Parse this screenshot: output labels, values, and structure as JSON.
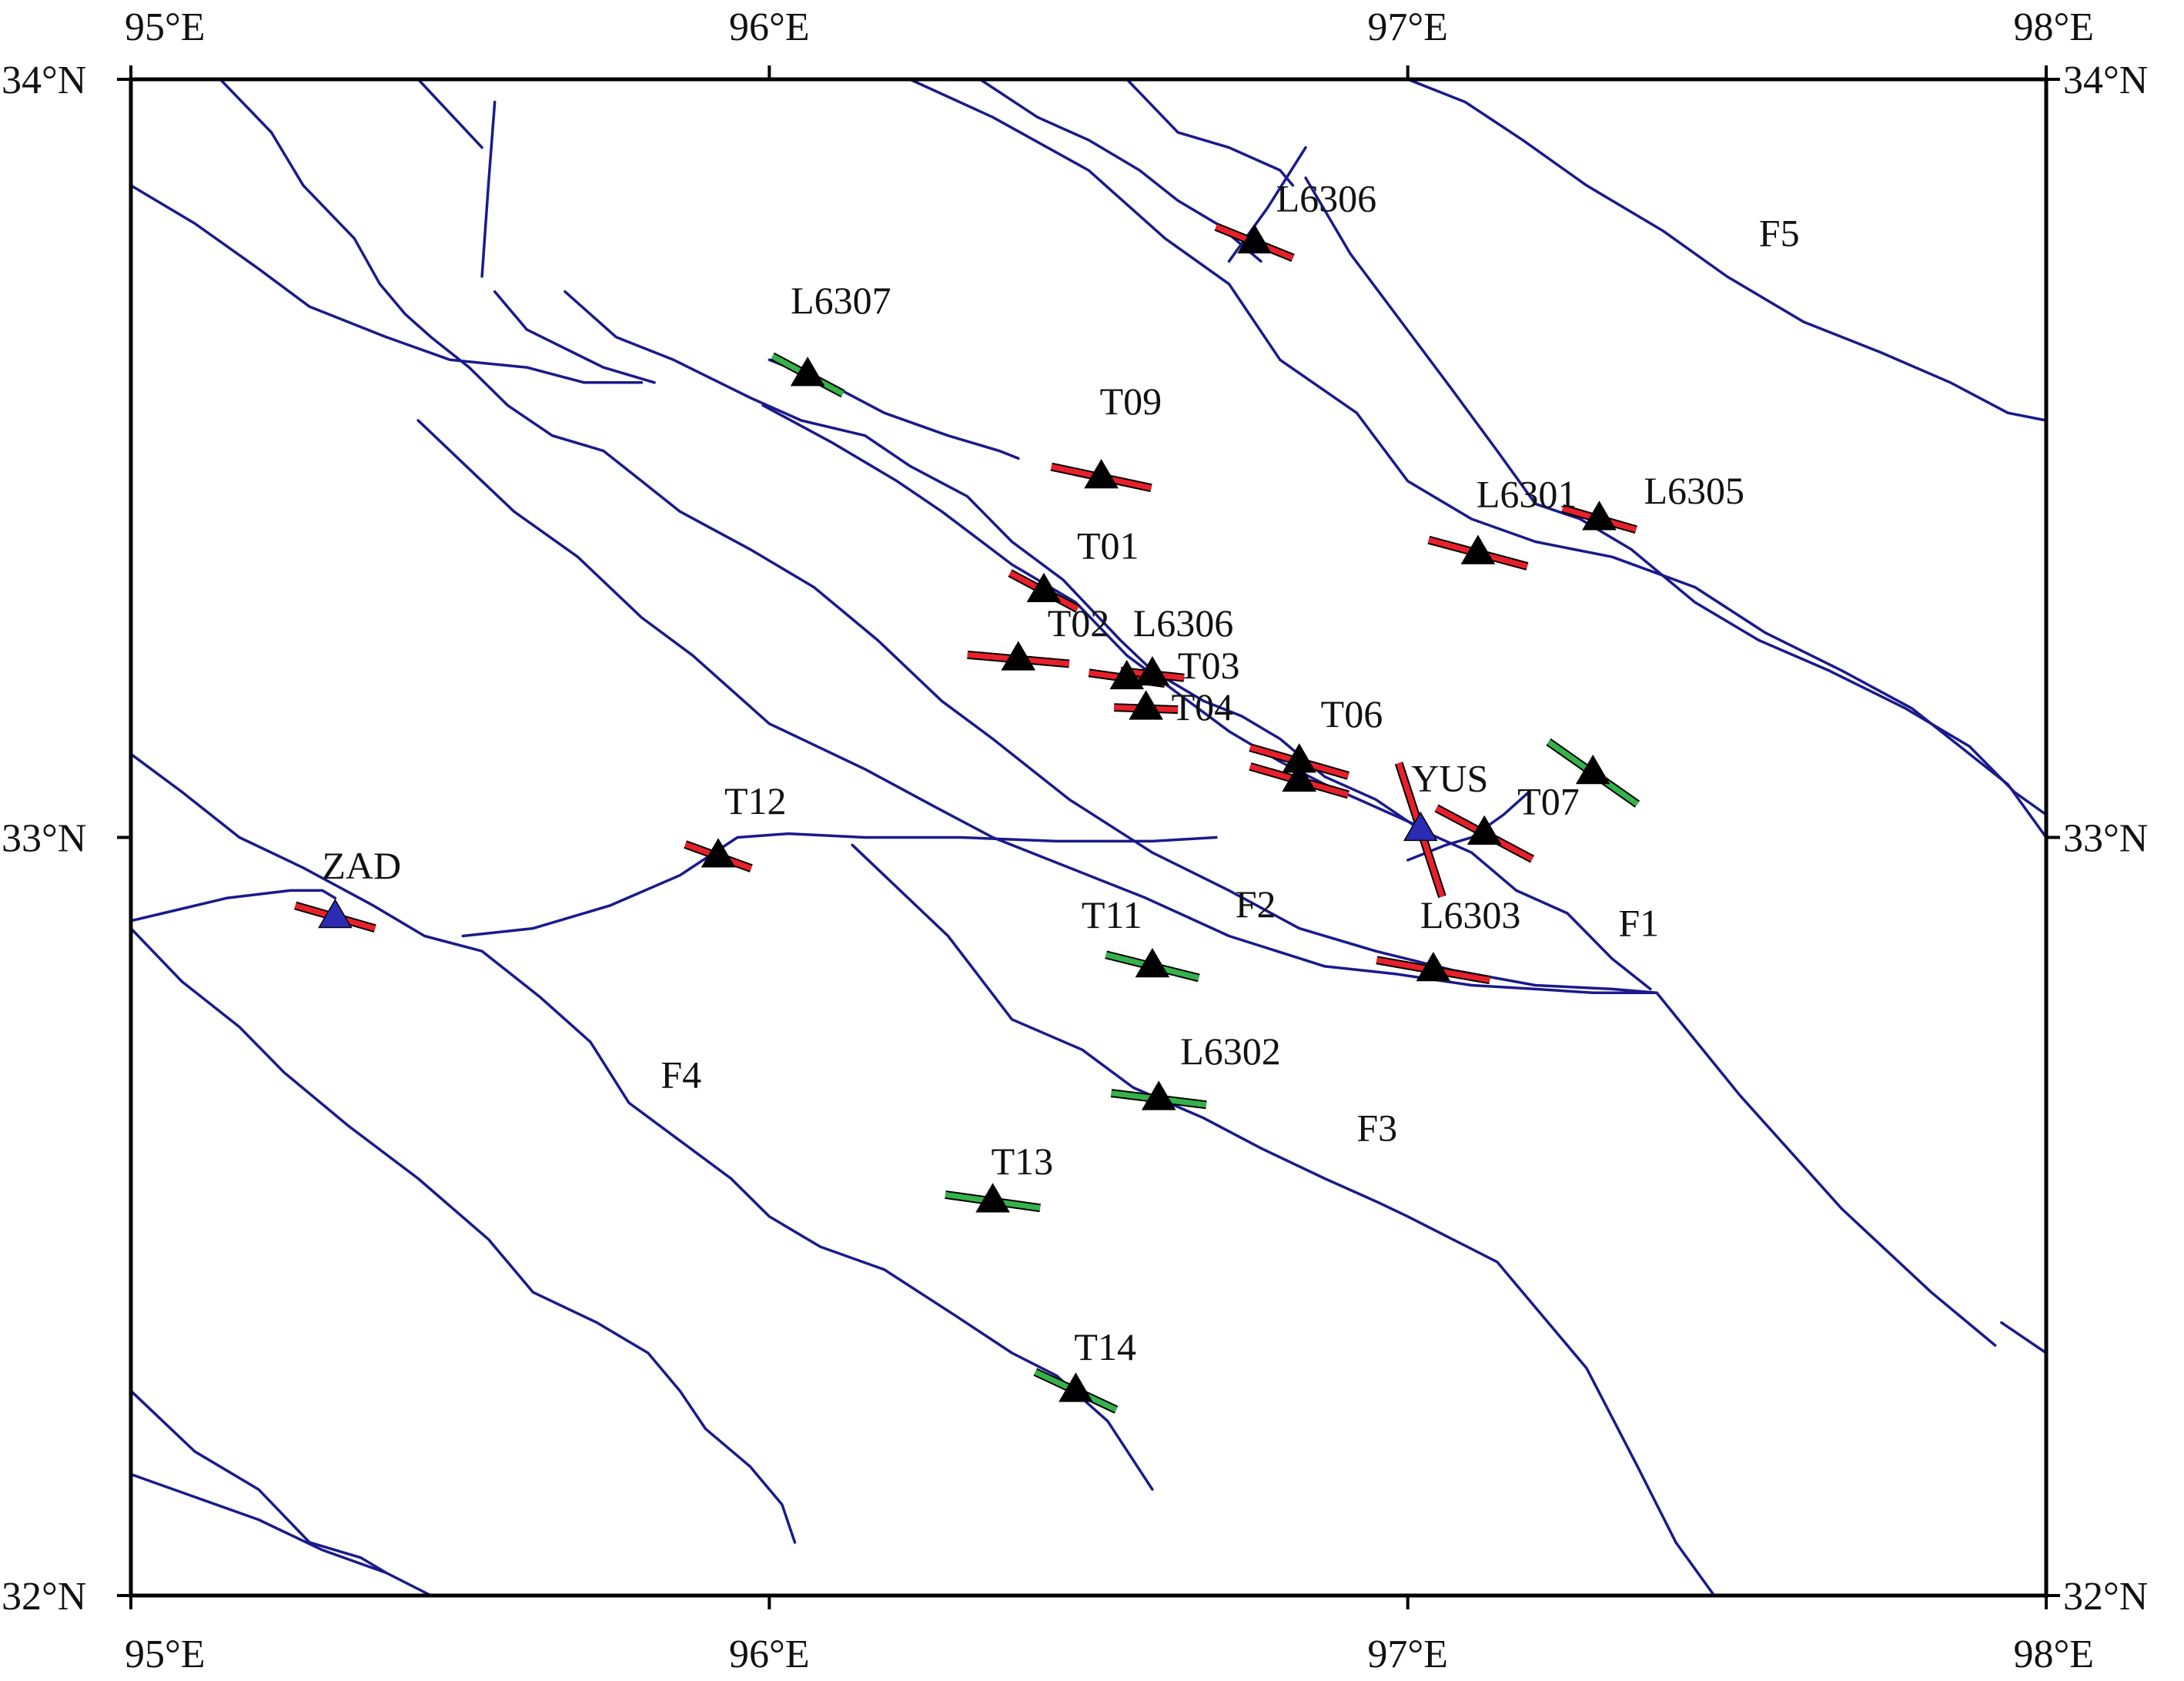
{
  "map": {
    "extent": {
      "lon_min": 95,
      "lon_max": 98,
      "lat_min": 32,
      "lat_max": 34
    },
    "lon_ticks": [
      {
        "value": 95,
        "label": "95°E"
      },
      {
        "value": 96,
        "label": "96°E"
      },
      {
        "value": 97,
        "label": "97°E"
      },
      {
        "value": 98,
        "label": "98°E"
      }
    ],
    "lat_ticks": [
      {
        "value": 34,
        "label": "34°N"
      },
      {
        "value": 33,
        "label": "33°N"
      },
      {
        "value": 32,
        "label": "32°N"
      }
    ],
    "colors": {
      "fault": "#1a1a8c",
      "bar_red": "#e8202a",
      "bar_green": "#34b34a",
      "station_black": "#000000",
      "station_blue": "#2b2bb5",
      "frame": "#000000"
    },
    "stations": [
      {
        "name": "L6306",
        "lon": 96.76,
        "lat": 33.785,
        "bar_angle": 22,
        "bar_len": 0.13,
        "bar_color": "red",
        "marker": "black"
      },
      {
        "name": "L6307",
        "lon": 96.06,
        "lat": 33.61,
        "bar_angle": 28,
        "bar_len": 0.125,
        "bar_color": "green",
        "marker": "black"
      },
      {
        "name": "T09",
        "lon": 96.52,
        "lat": 33.475,
        "bar_angle": 12,
        "bar_len": 0.16,
        "bar_color": "red",
        "marker": "black"
      },
      {
        "name": "L6301",
        "lon": 97.11,
        "lat": 33.375,
        "bar_angle": 15,
        "bar_len": 0.16,
        "bar_color": "red",
        "marker": "black"
      },
      {
        "name": "L6305",
        "lon": 97.3,
        "lat": 33.42,
        "bar_angle": 16,
        "bar_len": 0.12,
        "bar_color": "red",
        "marker": "black"
      },
      {
        "name": "T01",
        "lon": 96.43,
        "lat": 33.325,
        "bar_angle": 28,
        "bar_len": 0.12,
        "bar_color": "red",
        "marker": "black"
      },
      {
        "name": "T02",
        "lon": 96.39,
        "lat": 33.235,
        "bar_angle": 5,
        "bar_len": 0.16,
        "bar_color": "red",
        "marker": "black"
      },
      {
        "name": "L6306",
        "lon": 96.56,
        "lat": 33.21,
        "bar_angle": 8,
        "bar_len": 0.12,
        "bar_color": "red",
        "marker": "black"
      },
      {
        "name": "T03",
        "lon": 96.6,
        "lat": 33.215,
        "bar_angle": 6,
        "bar_len": 0.1,
        "bar_color": "red",
        "marker": "black"
      },
      {
        "name": "T04",
        "lon": 96.59,
        "lat": 33.17,
        "bar_angle": 2,
        "bar_len": 0.1,
        "bar_color": "red",
        "marker": "black"
      },
      {
        "name": "T06",
        "lon": 96.83,
        "lat": 33.1,
        "bar_angle": 16,
        "bar_len": 0.16,
        "bar_color": "red",
        "marker": "black"
      },
      {
        "name": "",
        "lon": 96.83,
        "lat": 33.075,
        "bar_angle": 16,
        "bar_len": 0.16,
        "bar_color": "red",
        "marker": "black"
      },
      {
        "name": "",
        "lon": 97.29,
        "lat": 33.085,
        "bar_angle": 35,
        "bar_len": 0.17,
        "bar_color": "green",
        "marker": "black"
      },
      {
        "name": "YUS",
        "lon": 97.02,
        "lat": 33.01,
        "bar_angle": 72,
        "bar_len": 0.22,
        "bar_color": "red",
        "marker": "blue"
      },
      {
        "name": "T07",
        "lon": 97.12,
        "lat": 33.005,
        "bar_angle": 28,
        "bar_len": 0.17,
        "bar_color": "red",
        "marker": "black"
      },
      {
        "name": "T12",
        "lon": 95.92,
        "lat": 32.975,
        "bar_angle": 20,
        "bar_len": 0.11,
        "bar_color": "red",
        "marker": "black"
      },
      {
        "name": "ZAD",
        "lon": 95.32,
        "lat": 32.895,
        "bar_angle": 16,
        "bar_len": 0.13,
        "bar_color": "red",
        "marker": "blue"
      },
      {
        "name": "T11",
        "lon": 96.6,
        "lat": 32.83,
        "bar_angle": 14,
        "bar_len": 0.15,
        "bar_color": "green",
        "marker": "black"
      },
      {
        "name": "L6303",
        "lon": 97.04,
        "lat": 32.825,
        "bar_angle": 10,
        "bar_len": 0.18,
        "bar_color": "red",
        "marker": "black"
      },
      {
        "name": "L6302",
        "lon": 96.61,
        "lat": 32.655,
        "bar_angle": 7,
        "bar_len": 0.15,
        "bar_color": "green",
        "marker": "black"
      },
      {
        "name": "T13",
        "lon": 96.35,
        "lat": 32.52,
        "bar_angle": 8,
        "bar_len": 0.15,
        "bar_color": "green",
        "marker": "black"
      },
      {
        "name": "T14",
        "lon": 96.48,
        "lat": 32.27,
        "bar_angle": 25,
        "bar_len": 0.14,
        "bar_color": "green",
        "marker": "black"
      }
    ],
    "fault_labels": [
      {
        "name": "F1",
        "lon": 97.33,
        "lat": 32.87
      },
      {
        "name": "F2",
        "lon": 96.73,
        "lat": 32.895
      },
      {
        "name": "F3",
        "lon": 96.92,
        "lat": 32.6
      },
      {
        "name": "F4",
        "lon": 95.83,
        "lat": 32.67
      },
      {
        "name": "F5",
        "lon": 97.55,
        "lat": 33.78
      }
    ],
    "faults": [
      [
        [
          95,
          33.86
        ],
        [
          95.1,
          33.81
        ],
        [
          95.2,
          33.75
        ],
        [
          95.28,
          33.7
        ],
        [
          95.4,
          33.66
        ],
        [
          95.5,
          33.63
        ],
        [
          95.62,
          33.62
        ],
        [
          95.71,
          33.6
        ],
        [
          95.8,
          33.6
        ]
      ],
      [
        [
          95.14,
          34
        ],
        [
          95.22,
          33.93
        ],
        [
          95.27,
          33.86
        ],
        [
          95.35,
          33.79
        ],
        [
          95.39,
          33.73
        ],
        [
          95.43,
          33.69
        ],
        [
          95.47,
          33.66
        ],
        [
          95.53,
          33.62
        ],
        [
          95.59,
          33.57
        ],
        [
          95.66,
          33.53
        ],
        [
          95.74,
          33.51
        ],
        [
          95.8,
          33.47
        ],
        [
          95.86,
          33.43
        ],
        [
          95.97,
          33.38
        ],
        [
          96.07,
          33.33
        ],
        [
          96.17,
          33.26
        ],
        [
          96.27,
          33.18
        ],
        [
          96.35,
          33.13
        ],
        [
          96.47,
          33.05
        ],
        [
          96.6,
          32.98
        ],
        [
          96.72,
          32.93
        ],
        [
          96.83,
          32.88
        ],
        [
          96.95,
          32.85
        ],
        [
          97.07,
          32.825
        ],
        [
          97.2,
          32.805
        ],
        [
          97.32,
          32.8
        ],
        [
          97.39,
          32.795
        ]
      ],
      [
        [
          95.45,
          33.55
        ],
        [
          95.55,
          33.47
        ],
        [
          95.6,
          33.43
        ],
        [
          95.7,
          33.37
        ],
        [
          95.8,
          33.29
        ],
        [
          95.88,
          33.24
        ],
        [
          96.0,
          33.15
        ],
        [
          96.15,
          33.09
        ],
        [
          96.26,
          33.04
        ],
        [
          96.35,
          33.0
        ],
        [
          96.47,
          32.96
        ],
        [
          96.59,
          32.92
        ],
        [
          96.72,
          32.87
        ],
        [
          96.87,
          32.83
        ],
        [
          96.98,
          32.82
        ],
        [
          97.1,
          32.805
        ],
        [
          97.2,
          32.8
        ],
        [
          97.29,
          32.795
        ],
        [
          97.39,
          32.795
        ],
        [
          97.52,
          32.66
        ],
        [
          97.68,
          32.51
        ],
        [
          97.82,
          32.4
        ],
        [
          97.92,
          32.33
        ]
      ],
      [
        [
          95,
          33.11
        ],
        [
          95.08,
          33.06
        ],
        [
          95.17,
          33.0
        ],
        [
          95.27,
          32.96
        ],
        [
          95.38,
          32.91
        ],
        [
          95.46,
          32.87
        ],
        [
          95.55,
          32.85
        ],
        [
          95.64,
          32.79
        ],
        [
          95.72,
          32.73
        ],
        [
          95.78,
          32.65
        ],
        [
          95.86,
          32.6
        ],
        [
          95.94,
          32.55
        ],
        [
          96.0,
          32.5
        ],
        [
          96.08,
          32.46
        ],
        [
          96.18,
          32.43
        ],
        [
          96.29,
          32.37
        ],
        [
          96.38,
          32.32
        ],
        [
          96.45,
          32.29
        ],
        [
          96.53,
          32.23
        ],
        [
          96.6,
          32.14
        ]
      ],
      [
        [
          95,
          32.88
        ],
        [
          95.08,
          32.81
        ],
        [
          95.17,
          32.75
        ],
        [
          95.24,
          32.69
        ],
        [
          95.34,
          32.62
        ],
        [
          95.45,
          32.55
        ],
        [
          95.56,
          32.47
        ],
        [
          95.63,
          32.4
        ],
        [
          95.73,
          32.36
        ],
        [
          95.81,
          32.32
        ],
        [
          95.86,
          32.27
        ],
        [
          95.9,
          32.22
        ],
        [
          95.97,
          32.17
        ],
        [
          96.02,
          32.12
        ],
        [
          96.04,
          32.07
        ]
      ],
      [
        [
          95.0,
          32.89
        ],
        [
          95.05,
          32.9
        ],
        [
          95.15,
          32.92
        ],
        [
          95.25,
          32.93
        ],
        [
          95.3,
          32.93
        ],
        [
          95.32,
          32.92
        ]
      ],
      [
        [
          95.52,
          32.87
        ],
        [
          95.63,
          32.88
        ],
        [
          95.75,
          32.91
        ],
        [
          95.86,
          32.95
        ],
        [
          95.95,
          33.0
        ],
        [
          96.03,
          33.005
        ],
        [
          96.15,
          33.0
        ],
        [
          96.3,
          33.0
        ],
        [
          96.45,
          32.995
        ],
        [
          96.6,
          32.995
        ],
        [
          96.7,
          33.0
        ]
      ],
      [
        [
          96.13,
          32.99
        ],
        [
          96.18,
          32.95
        ],
        [
          96.28,
          32.87
        ],
        [
          96.38,
          32.76
        ],
        [
          96.49,
          32.72
        ],
        [
          96.57,
          32.67
        ],
        [
          96.68,
          32.63
        ],
        [
          96.77,
          32.59
        ],
        [
          96.87,
          32.55
        ],
        [
          96.95,
          32.52
        ],
        [
          97.0,
          32.5
        ],
        [
          97.07,
          32.47
        ],
        [
          97.14,
          32.44
        ],
        [
          97.2,
          32.38
        ],
        [
          97.28,
          32.3
        ],
        [
          97.36,
          32.17
        ],
        [
          97.42,
          32.07
        ],
        [
          97.48,
          32.0
        ]
      ],
      [
        [
          95.0,
          32.27
        ],
        [
          95.1,
          32.19
        ],
        [
          95.2,
          32.14
        ],
        [
          95.28,
          32.07
        ],
        [
          95.36,
          32.05
        ],
        [
          95.4,
          32.03
        ]
      ],
      [
        [
          95.0,
          32.16
        ],
        [
          95.1,
          32.13
        ],
        [
          95.2,
          32.1
        ],
        [
          95.3,
          32.06
        ],
        [
          95.4,
          32.03
        ],
        [
          95.47,
          32.0
        ]
      ],
      [
        [
          96.22,
          34.0
        ],
        [
          96.35,
          33.95
        ],
        [
          96.5,
          33.88
        ],
        [
          96.62,
          33.79
        ],
        [
          96.72,
          33.73
        ],
        [
          96.8,
          33.63
        ],
        [
          96.92,
          33.56
        ],
        [
          97.0,
          33.47
        ],
        [
          97.1,
          33.42
        ],
        [
          97.2,
          33.39
        ],
        [
          97.32,
          33.37
        ],
        [
          97.45,
          33.33
        ],
        [
          97.56,
          33.27
        ],
        [
          97.68,
          33.22
        ],
        [
          97.79,
          33.17
        ],
        [
          97.88,
          33.11
        ],
        [
          97.94,
          33.07
        ],
        [
          98.0,
          33.0
        ]
      ],
      [
        [
          96.33,
          34.0
        ],
        [
          96.42,
          33.95
        ],
        [
          96.5,
          33.92
        ],
        [
          96.58,
          33.88
        ],
        [
          96.64,
          33.84
        ],
        [
          96.7,
          33.81
        ],
        [
          96.77,
          33.76
        ]
      ],
      [
        [
          96.56,
          34.0
        ],
        [
          96.64,
          33.93
        ],
        [
          96.72,
          33.91
        ],
        [
          96.8,
          33.88
        ],
        [
          96.82,
          33.86
        ]
      ],
      [
        [
          97.0,
          34.0
        ],
        [
          97.09,
          33.97
        ],
        [
          97.18,
          33.92
        ],
        [
          97.28,
          33.86
        ],
        [
          97.4,
          33.8
        ],
        [
          97.5,
          33.74
        ],
        [
          97.62,
          33.68
        ],
        [
          97.74,
          33.64
        ],
        [
          97.85,
          33.6
        ],
        [
          97.94,
          33.56
        ],
        [
          98.0,
          33.55
        ]
      ],
      [
        [
          96.84,
          33.87
        ],
        [
          96.91,
          33.77
        ],
        [
          96.99,
          33.68
        ],
        [
          97.07,
          33.59
        ],
        [
          97.14,
          33.51
        ],
        [
          97.2,
          33.44
        ],
        [
          97.27,
          33.42
        ],
        [
          97.35,
          33.38
        ],
        [
          97.45,
          33.31
        ],
        [
          97.55,
          33.26
        ],
        [
          97.66,
          33.22
        ],
        [
          97.78,
          33.17
        ],
        [
          97.88,
          33.12
        ],
        [
          97.95,
          33.06
        ],
        [
          98.0,
          33.03
        ]
      ],
      [
        [
          95.57,
          33.72
        ],
        [
          95.62,
          33.67
        ],
        [
          95.74,
          33.62
        ],
        [
          95.82,
          33.6
        ]
      ],
      [
        [
          95.68,
          33.72
        ],
        [
          95.76,
          33.66
        ],
        [
          95.85,
          33.63
        ],
        [
          95.97,
          33.58
        ],
        [
          96.05,
          33.55
        ],
        [
          96.15,
          33.53
        ],
        [
          96.22,
          33.49
        ],
        [
          96.31,
          33.45
        ],
        [
          96.38,
          33.39
        ],
        [
          96.46,
          33.34
        ],
        [
          96.55,
          33.26
        ],
        [
          96.6,
          33.22
        ],
        [
          96.68,
          33.18
        ],
        [
          96.74,
          33.16
        ],
        [
          96.8,
          33.13
        ],
        [
          96.87,
          33.08
        ],
        [
          96.95,
          33.05
        ],
        [
          97.02,
          33.01
        ],
        [
          97.1,
          32.98
        ],
        [
          97.17,
          32.93
        ],
        [
          97.25,
          32.9
        ],
        [
          97.32,
          32.84
        ],
        [
          97.38,
          32.8
        ]
      ],
      [
        [
          96.0,
          33.63
        ],
        [
          96.09,
          33.6
        ],
        [
          96.18,
          33.56
        ],
        [
          96.28,
          33.53
        ],
        [
          96.36,
          33.51
        ],
        [
          96.39,
          33.5
        ]
      ],
      [
        [
          95.99,
          33.57
        ],
        [
          96.1,
          33.52
        ],
        [
          96.2,
          33.47
        ],
        [
          96.27,
          33.43
        ],
        [
          96.38,
          33.36
        ],
        [
          96.48,
          33.31
        ],
        [
          96.56,
          33.24
        ],
        [
          96.64,
          33.19
        ],
        [
          96.72,
          33.14
        ],
        [
          96.8,
          33.1
        ],
        [
          96.87,
          33.07
        ],
        [
          96.95,
          33.04
        ],
        [
          97.03,
          33.01
        ]
      ],
      [
        [
          95.45,
          34.0
        ],
        [
          95.55,
          33.91
        ]
      ],
      [
        [
          95.57,
          33.97
        ],
        [
          95.56,
          33.86
        ],
        [
          95.55,
          33.74
        ]
      ],
      [
        [
          96.72,
          33.76
        ],
        [
          96.78,
          33.83
        ],
        [
          96.84,
          33.91
        ]
      ],
      [
        [
          97.0,
          32.97
        ],
        [
          97.06,
          32.99
        ],
        [
          97.1,
          33.0
        ],
        [
          97.15,
          33.03
        ],
        [
          97.19,
          33.06
        ]
      ],
      [
        [
          97.93,
          32.36
        ],
        [
          98.0,
          32.32
        ]
      ]
    ]
  }
}
